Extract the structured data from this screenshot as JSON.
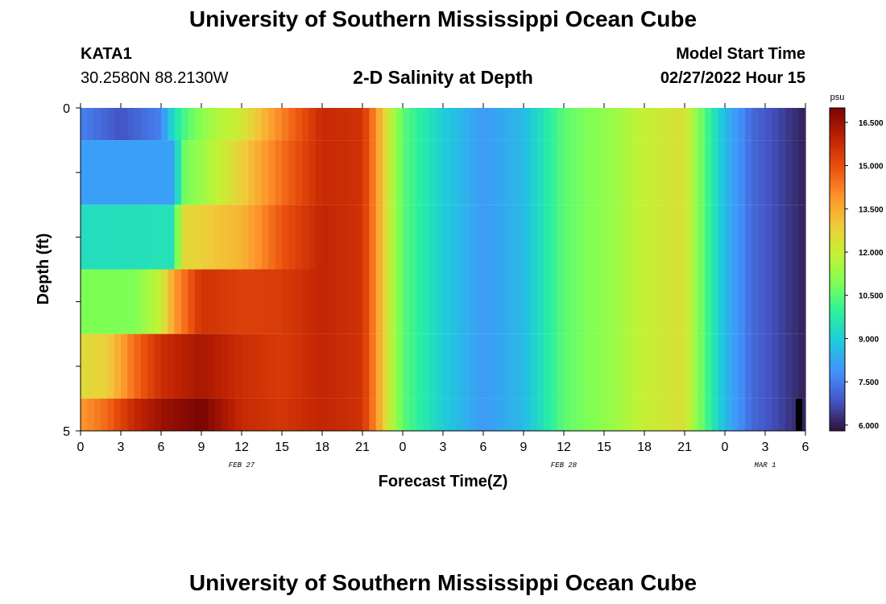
{
  "header": {
    "title": "University of Southern Mississippi Ocean Cube",
    "station": "KATA1",
    "coords": "30.2580N  88.2130W",
    "chart_title": "2-D Salinity at Depth",
    "model_start_label": "Model Start Time",
    "model_start_value": "02/27/2022 Hour 15"
  },
  "footer": {
    "title": "University of Southern Mississippi Ocean Cube"
  },
  "chart_data": {
    "type": "heatmap",
    "title": "2-D Salinity at Depth",
    "xlabel": "Forecast Time(Z)",
    "ylabel": "Depth (ft)",
    "x_tick_labels": [
      "0",
      "3",
      "6",
      "9",
      "12",
      "15",
      "18",
      "21",
      "0",
      "3",
      "6",
      "9",
      "12",
      "15",
      "18",
      "21",
      "0",
      "3",
      "6"
    ],
    "x_range_hours": [
      0,
      54
    ],
    "date_labels": [
      {
        "label": "FEB 27",
        "hour": 12
      },
      {
        "label": "FEB 28",
        "hour": 36
      },
      {
        "label": "MAR 1",
        "hour": 51
      }
    ],
    "y_tick_labels": [
      "0",
      "5"
    ],
    "ylim": [
      0,
      5
    ],
    "colorbar": {
      "unit": "psu",
      "range": [
        5.8,
        17.0
      ],
      "ticks": [
        "16.500",
        "15.000",
        "13.500",
        "12.000",
        "10.500",
        "9.000",
        "7.500",
        "6.000"
      ],
      "colors": [
        "#30123b",
        "#4454c4",
        "#4490fe",
        "#1fc8de",
        "#29efa2",
        "#7dff56",
        "#c1f334",
        "#f1ca3a",
        "#fe922a",
        "#ea4f0d",
        "#be2102",
        "#7a0403"
      ]
    },
    "columns_per_hour": 2,
    "rows": [
      {
        "depth": "0-0.5 ft",
        "keys": [
          [
            0,
            7.6
          ],
          [
            3,
            6.8
          ],
          [
            6,
            7.6
          ],
          [
            7,
            9.5
          ],
          [
            8,
            10.5
          ],
          [
            10,
            11.6
          ],
          [
            12,
            12.2
          ],
          [
            15,
            14.2
          ],
          [
            18,
            15.8
          ],
          [
            21,
            15.6
          ],
          [
            22,
            14.0
          ],
          [
            23,
            12.0
          ],
          [
            24,
            10.5
          ],
          [
            27,
            9.0
          ],
          [
            30,
            8.0
          ],
          [
            33,
            8.6
          ],
          [
            36,
            10.5
          ],
          [
            40,
            11.4
          ],
          [
            42,
            12.0
          ],
          [
            45,
            12.4
          ],
          [
            46,
            11.0
          ],
          [
            48,
            8.6
          ],
          [
            50,
            7.2
          ],
          [
            54,
            6.0
          ]
        ]
      },
      {
        "depth": "0.5-1.5 ft",
        "keys": [
          [
            0,
            8.1
          ],
          [
            7,
            8.1
          ],
          [
            7.5,
            10.6
          ],
          [
            10,
            11.8
          ],
          [
            12,
            12.8
          ],
          [
            15,
            14.5
          ],
          [
            18,
            15.8
          ],
          [
            21,
            15.6
          ],
          [
            22,
            14.0
          ],
          [
            23,
            12.0
          ],
          [
            24,
            10.5
          ],
          [
            27,
            9.0
          ],
          [
            30,
            8.0
          ],
          [
            33,
            8.6
          ],
          [
            36,
            10.5
          ],
          [
            40,
            11.4
          ],
          [
            42,
            12.0
          ],
          [
            45,
            12.4
          ],
          [
            46,
            11.0
          ],
          [
            48,
            8.6
          ],
          [
            50,
            7.2
          ],
          [
            54,
            6.0
          ]
        ]
      },
      {
        "depth": "1.5-2.5 ft",
        "keys": [
          [
            0,
            9.4
          ],
          [
            7,
            9.5
          ],
          [
            7.5,
            12.5
          ],
          [
            10,
            13.0
          ],
          [
            12,
            13.3
          ],
          [
            15,
            14.9
          ],
          [
            18,
            15.9
          ],
          [
            21,
            15.6
          ],
          [
            22,
            14.0
          ],
          [
            23,
            12.0
          ],
          [
            24,
            10.5
          ],
          [
            27,
            9.0
          ],
          [
            30,
            8.0
          ],
          [
            33,
            8.6
          ],
          [
            36,
            10.5
          ],
          [
            40,
            11.4
          ],
          [
            42,
            12.0
          ],
          [
            45,
            12.4
          ],
          [
            46,
            11.0
          ],
          [
            48,
            8.6
          ],
          [
            50,
            7.2
          ],
          [
            54,
            6.0
          ]
        ]
      },
      {
        "depth": "2.5-3.5 ft",
        "keys": [
          [
            0,
            10.9
          ],
          [
            4,
            10.9
          ],
          [
            6,
            12.0
          ],
          [
            7,
            13.8
          ],
          [
            9,
            15.6
          ],
          [
            12,
            15.3
          ],
          [
            15,
            15.4
          ],
          [
            18,
            15.9
          ],
          [
            21,
            15.6
          ],
          [
            22,
            14.0
          ],
          [
            23,
            12.0
          ],
          [
            24,
            10.5
          ],
          [
            27,
            9.0
          ],
          [
            30,
            8.0
          ],
          [
            33,
            8.6
          ],
          [
            36,
            10.5
          ],
          [
            40,
            11.4
          ],
          [
            42,
            12.0
          ],
          [
            45,
            12.4
          ],
          [
            46,
            11.0
          ],
          [
            48,
            8.6
          ],
          [
            50,
            7.2
          ],
          [
            54,
            6.0
          ]
        ]
      },
      {
        "depth": "3.5-4.5 ft",
        "keys": [
          [
            0,
            12.5
          ],
          [
            2,
            12.8
          ],
          [
            4,
            14.5
          ],
          [
            6,
            15.7
          ],
          [
            9,
            16.3
          ],
          [
            12,
            15.7
          ],
          [
            15,
            15.4
          ],
          [
            18,
            15.9
          ],
          [
            21,
            15.6
          ],
          [
            22,
            14.0
          ],
          [
            23,
            12.0
          ],
          [
            24,
            10.5
          ],
          [
            27,
            9.0
          ],
          [
            30,
            8.0
          ],
          [
            33,
            8.6
          ],
          [
            36,
            10.5
          ],
          [
            40,
            11.4
          ],
          [
            42,
            12.0
          ],
          [
            45,
            12.4
          ],
          [
            46,
            11.0
          ],
          [
            48,
            8.6
          ],
          [
            50,
            7.2
          ],
          [
            54,
            6.0
          ]
        ]
      },
      {
        "depth": "4.5-5 ft",
        "keys": [
          [
            0,
            13.8
          ],
          [
            2,
            14.6
          ],
          [
            4,
            15.8
          ],
          [
            6,
            16.5
          ],
          [
            9,
            17.0
          ],
          [
            12,
            15.8
          ],
          [
            15,
            15.5
          ],
          [
            18,
            15.9
          ],
          [
            21,
            15.6
          ],
          [
            22,
            14.0
          ],
          [
            23,
            12.0
          ],
          [
            24,
            10.5
          ],
          [
            27,
            9.0
          ],
          [
            30,
            8.0
          ],
          [
            33,
            8.6
          ],
          [
            36,
            10.5
          ],
          [
            40,
            11.4
          ],
          [
            42,
            12.0
          ],
          [
            45,
            12.4
          ],
          [
            46,
            11.0
          ],
          [
            48,
            8.6
          ],
          [
            50,
            7.2
          ],
          [
            54,
            6.0
          ]
        ]
      }
    ],
    "row_bounds_ft": [
      0,
      0.5,
      1.5,
      2.5,
      3.5,
      4.5,
      5
    ]
  }
}
